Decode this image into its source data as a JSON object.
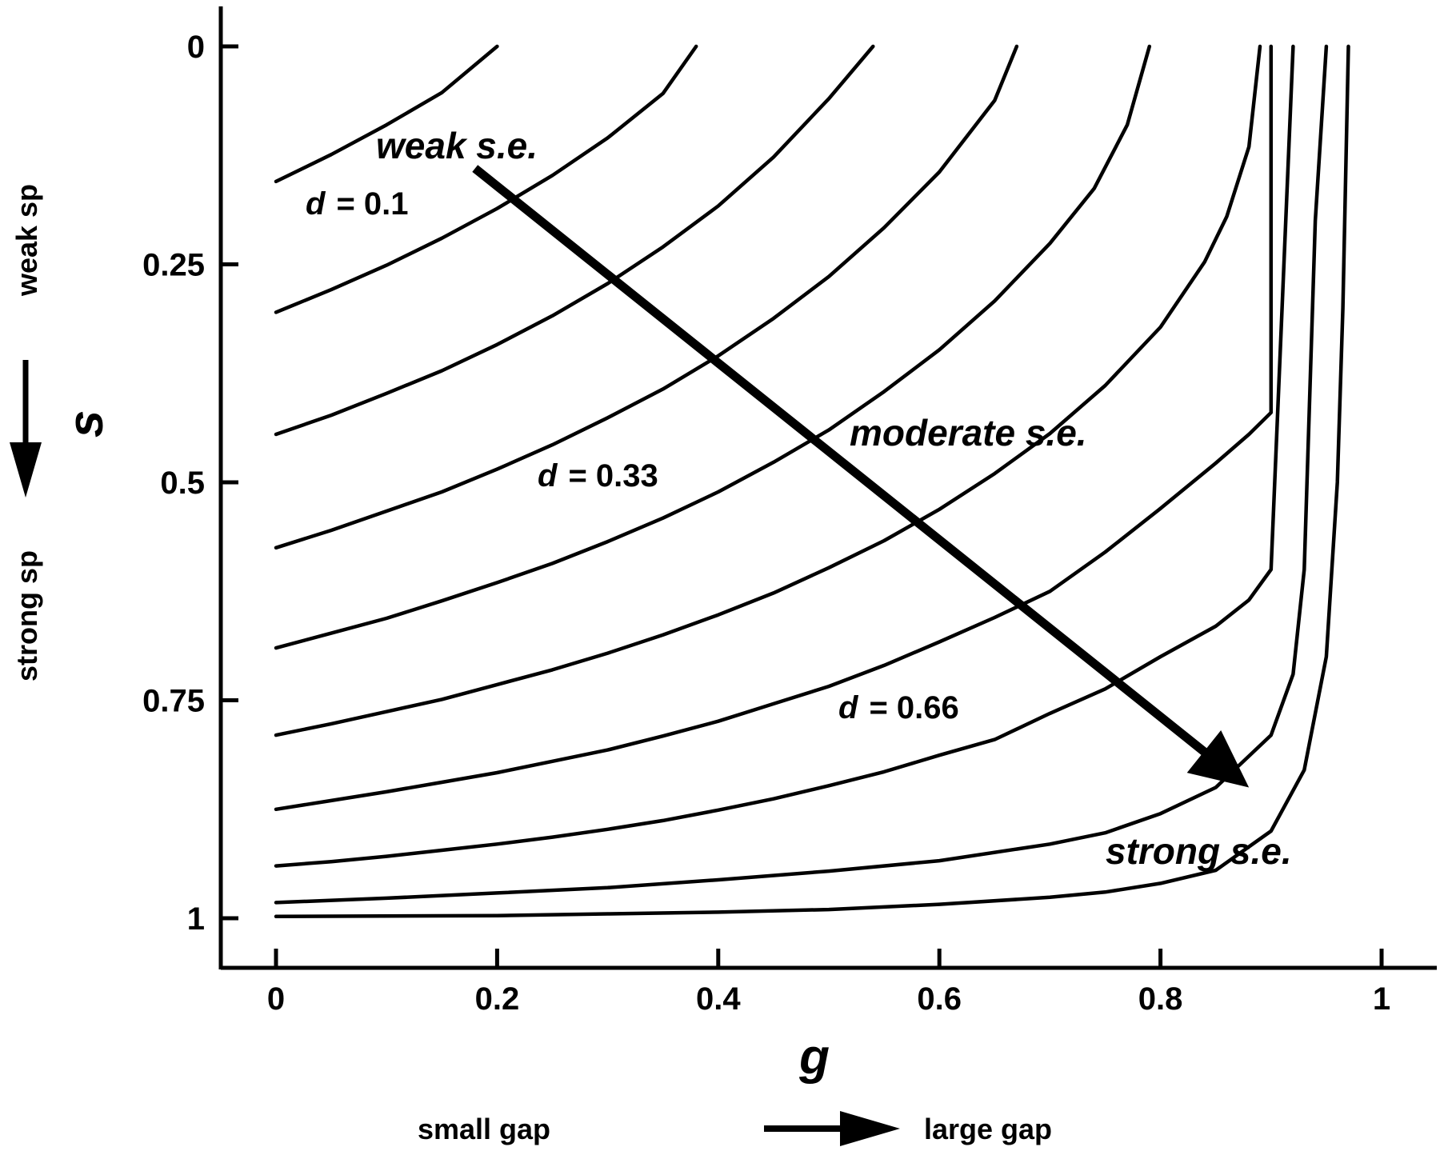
{
  "chart_data": {
    "type": "line",
    "xlabel": "g",
    "ylabel": "s",
    "xlim": [
      -0.05,
      1.05
    ],
    "ylim": [
      1.05,
      -0.05
    ],
    "y_inverted": true,
    "x_ticks": [
      0,
      0.2,
      0.4,
      0.6,
      0.8,
      1
    ],
    "x_tick_labels": [
      "0",
      "0.2",
      "0.4",
      "0.6",
      "0.8",
      "1"
    ],
    "y_ticks": [
      0,
      0.25,
      0.5,
      0.75,
      1
    ],
    "y_tick_labels": [
      "0",
      "0.25",
      "0.5",
      "0.75",
      "1"
    ],
    "x_direction": {
      "left": "small gap",
      "right": "large gap"
    },
    "y_direction": {
      "top": "weak sp",
      "bottom": "strong sp"
    },
    "grid": false,
    "series": [
      {
        "values": [
          [
            0,
            0.155
          ],
          [
            0.05,
            0.124
          ],
          [
            0.1,
            0.09
          ],
          [
            0.15,
            0.053
          ],
          [
            0.2,
            0.0
          ]
        ]
      },
      {
        "values": [
          [
            0,
            0.305
          ],
          [
            0.05,
            0.279
          ],
          [
            0.1,
            0.251
          ],
          [
            0.15,
            0.22
          ],
          [
            0.2,
            0.186
          ],
          [
            0.25,
            0.148
          ],
          [
            0.3,
            0.105
          ],
          [
            0.35,
            0.054
          ],
          [
            0.38,
            0.0
          ]
        ]
      },
      {
        "values": [
          [
            0,
            0.445
          ],
          [
            0.05,
            0.423
          ],
          [
            0.1,
            0.398
          ],
          [
            0.15,
            0.372
          ],
          [
            0.2,
            0.342
          ],
          [
            0.25,
            0.309
          ],
          [
            0.3,
            0.272
          ],
          [
            0.35,
            0.23
          ],
          [
            0.4,
            0.183
          ],
          [
            0.45,
            0.127
          ],
          [
            0.5,
            0.06
          ],
          [
            0.54,
            0.0
          ]
        ]
      },
      {
        "values": [
          [
            0,
            0.575
          ],
          [
            0.05,
            0.555
          ],
          [
            0.1,
            0.533
          ],
          [
            0.15,
            0.511
          ],
          [
            0.2,
            0.485
          ],
          [
            0.25,
            0.457
          ],
          [
            0.3,
            0.426
          ],
          [
            0.35,
            0.393
          ],
          [
            0.4,
            0.355
          ],
          [
            0.45,
            0.312
          ],
          [
            0.5,
            0.264
          ],
          [
            0.55,
            0.208
          ],
          [
            0.6,
            0.144
          ],
          [
            0.65,
            0.062
          ],
          [
            0.67,
            0.0
          ]
        ]
      },
      {
        "values": [
          [
            0,
            0.69
          ],
          [
            0.05,
            0.673
          ],
          [
            0.1,
            0.656
          ],
          [
            0.15,
            0.636
          ],
          [
            0.2,
            0.615
          ],
          [
            0.25,
            0.593
          ],
          [
            0.3,
            0.568
          ],
          [
            0.35,
            0.541
          ],
          [
            0.4,
            0.511
          ],
          [
            0.45,
            0.477
          ],
          [
            0.5,
            0.44
          ],
          [
            0.55,
            0.396
          ],
          [
            0.6,
            0.348
          ],
          [
            0.65,
            0.292
          ],
          [
            0.7,
            0.226
          ],
          [
            0.74,
            0.163
          ],
          [
            0.77,
            0.09
          ],
          [
            0.79,
            0.0
          ]
        ]
      },
      {
        "values": [
          [
            0,
            0.79
          ],
          [
            0.05,
            0.777
          ],
          [
            0.1,
            0.763
          ],
          [
            0.15,
            0.749
          ],
          [
            0.2,
            0.732
          ],
          [
            0.25,
            0.715
          ],
          [
            0.3,
            0.696
          ],
          [
            0.35,
            0.675
          ],
          [
            0.4,
            0.652
          ],
          [
            0.45,
            0.627
          ],
          [
            0.5,
            0.598
          ],
          [
            0.55,
            0.567
          ],
          [
            0.6,
            0.531
          ],
          [
            0.65,
            0.49
          ],
          [
            0.7,
            0.444
          ],
          [
            0.75,
            0.389
          ],
          [
            0.8,
            0.322
          ],
          [
            0.84,
            0.247
          ],
          [
            0.86,
            0.195
          ],
          [
            0.88,
            0.115
          ],
          [
            0.89,
            0.0
          ]
        ]
      },
      {
        "values": [
          [
            0,
            0.875
          ],
          [
            0.05,
            0.865
          ],
          [
            0.1,
            0.855
          ],
          [
            0.15,
            0.844
          ],
          [
            0.2,
            0.833
          ],
          [
            0.25,
            0.82
          ],
          [
            0.3,
            0.807
          ],
          [
            0.35,
            0.791
          ],
          [
            0.4,
            0.774
          ],
          [
            0.45,
            0.754
          ],
          [
            0.5,
            0.734
          ],
          [
            0.55,
            0.71
          ],
          [
            0.6,
            0.683
          ],
          [
            0.65,
            0.655
          ],
          [
            0.7,
            0.625
          ],
          [
            0.75,
            0.58
          ],
          [
            0.8,
            0.53
          ],
          [
            0.85,
            0.478
          ],
          [
            0.88,
            0.445
          ],
          [
            0.9,
            0.42
          ],
          [
            0.9,
            0.0
          ]
        ]
      },
      {
        "values": [
          [
            0,
            0.94
          ],
          [
            0.05,
            0.935
          ],
          [
            0.1,
            0.929
          ],
          [
            0.15,
            0.922
          ],
          [
            0.2,
            0.915
          ],
          [
            0.25,
            0.907
          ],
          [
            0.3,
            0.898
          ],
          [
            0.35,
            0.888
          ],
          [
            0.4,
            0.876
          ],
          [
            0.45,
            0.863
          ],
          [
            0.5,
            0.848
          ],
          [
            0.55,
            0.832
          ],
          [
            0.6,
            0.813
          ],
          [
            0.65,
            0.795
          ],
          [
            0.7,
            0.765
          ],
          [
            0.75,
            0.737
          ],
          [
            0.8,
            0.7
          ],
          [
            0.85,
            0.665
          ],
          [
            0.88,
            0.635
          ],
          [
            0.9,
            0.6
          ],
          [
            0.91,
            0.3
          ],
          [
            0.92,
            0.0
          ]
        ]
      },
      {
        "values": [
          [
            0,
            0.982
          ],
          [
            0.1,
            0.977
          ],
          [
            0.2,
            0.971
          ],
          [
            0.3,
            0.965
          ],
          [
            0.4,
            0.956
          ],
          [
            0.5,
            0.946
          ],
          [
            0.6,
            0.934
          ],
          [
            0.7,
            0.915
          ],
          [
            0.75,
            0.902
          ],
          [
            0.8,
            0.88
          ],
          [
            0.85,
            0.85
          ],
          [
            0.9,
            0.79
          ],
          [
            0.92,
            0.72
          ],
          [
            0.93,
            0.6
          ],
          [
            0.935,
            0.4
          ],
          [
            0.94,
            0.2
          ],
          [
            0.95,
            0.0
          ]
        ]
      },
      {
        "values": [
          [
            0,
            0.998
          ],
          [
            0.2,
            0.997
          ],
          [
            0.3,
            0.995
          ],
          [
            0.4,
            0.993
          ],
          [
            0.5,
            0.99
          ],
          [
            0.6,
            0.984
          ],
          [
            0.7,
            0.976
          ],
          [
            0.75,
            0.97
          ],
          [
            0.8,
            0.96
          ],
          [
            0.85,
            0.945
          ],
          [
            0.9,
            0.9
          ],
          [
            0.93,
            0.83
          ],
          [
            0.95,
            0.7
          ],
          [
            0.96,
            0.5
          ],
          [
            0.965,
            0.3
          ],
          [
            0.97,
            0.0
          ]
        ]
      }
    ],
    "annotations": {
      "weak": "weak s.e.",
      "moderate": "moderate s.e.",
      "strong": "strong s.e.",
      "d_labels": [
        {
          "var": "d",
          "value": "= 0.1"
        },
        {
          "var": "d",
          "value": "= 0.33"
        },
        {
          "var": "d",
          "value": "= 0.66"
        }
      ],
      "big_arrow": {
        "from": [
          0.18,
          0.14
        ],
        "to": [
          0.88,
          0.85
        ]
      }
    }
  }
}
